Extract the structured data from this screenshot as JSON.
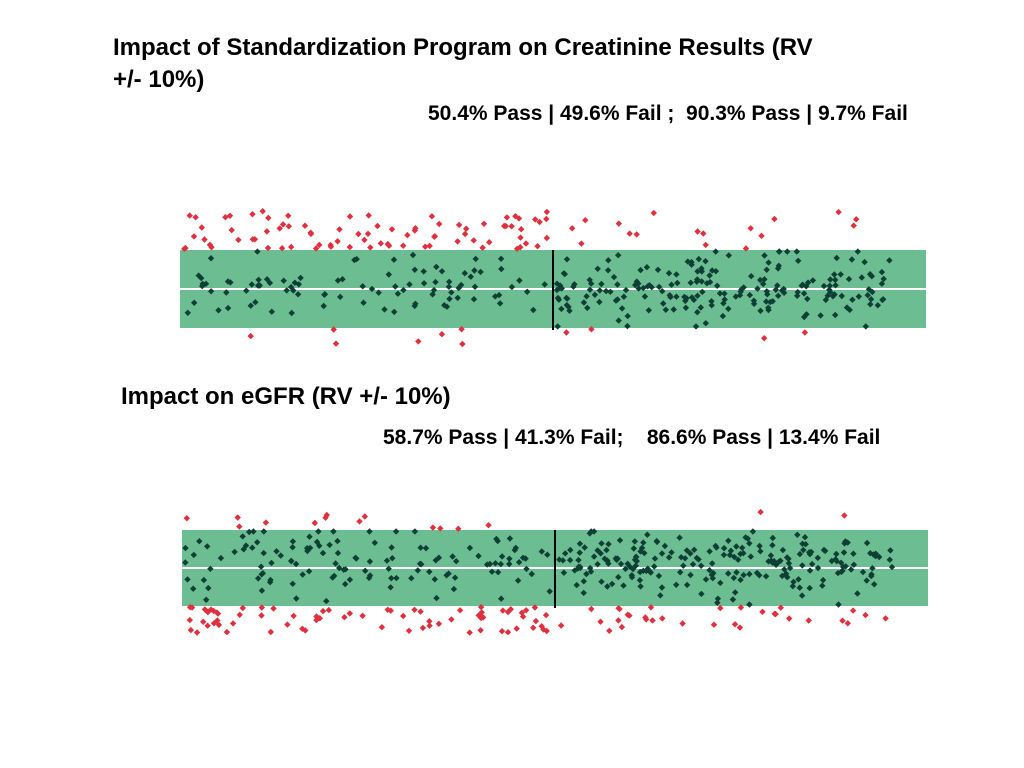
{
  "colors": {
    "band": "#6dbd93",
    "pass": "#0e3f34",
    "fail": "#e0303e",
    "centerline": "#ffffff",
    "divider": "#000000"
  },
  "chart_data": [
    {
      "type": "scatter",
      "title": "Impact of Standardization Program on Creatinine Results (RV +/- 10%)",
      "subtitle": "50.4% Pass | 49.6% Fail ;  90.3% Pass | 9.7% Fail",
      "xlabel": "",
      "ylabel": "",
      "grid": false,
      "legend": "none",
      "acceptance_band_pct": [
        -10,
        10
      ],
      "ylim": [
        -16,
        20
      ],
      "groups": [
        {
          "pass_pct": 50.4,
          "fail_pct": 49.6
        },
        {
          "pass_pct": 90.3,
          "fail_pct": 9.7
        }
      ]
    },
    {
      "type": "scatter",
      "title": "Impact on eGFR (RV +/- 10%)",
      "subtitle": "58.7% Pass | 41.3% Fail;    86.6% Pass | 13.4% Fail",
      "xlabel": "",
      "ylabel": "",
      "grid": false,
      "legend": "none",
      "acceptance_band_pct": [
        -10,
        10
      ],
      "ylim": [
        -17,
        15
      ],
      "groups": [
        {
          "pass_pct": 58.7,
          "fail_pct": 41.3
        },
        {
          "pass_pct": 86.6,
          "fail_pct": 13.4
        }
      ]
    }
  ]
}
